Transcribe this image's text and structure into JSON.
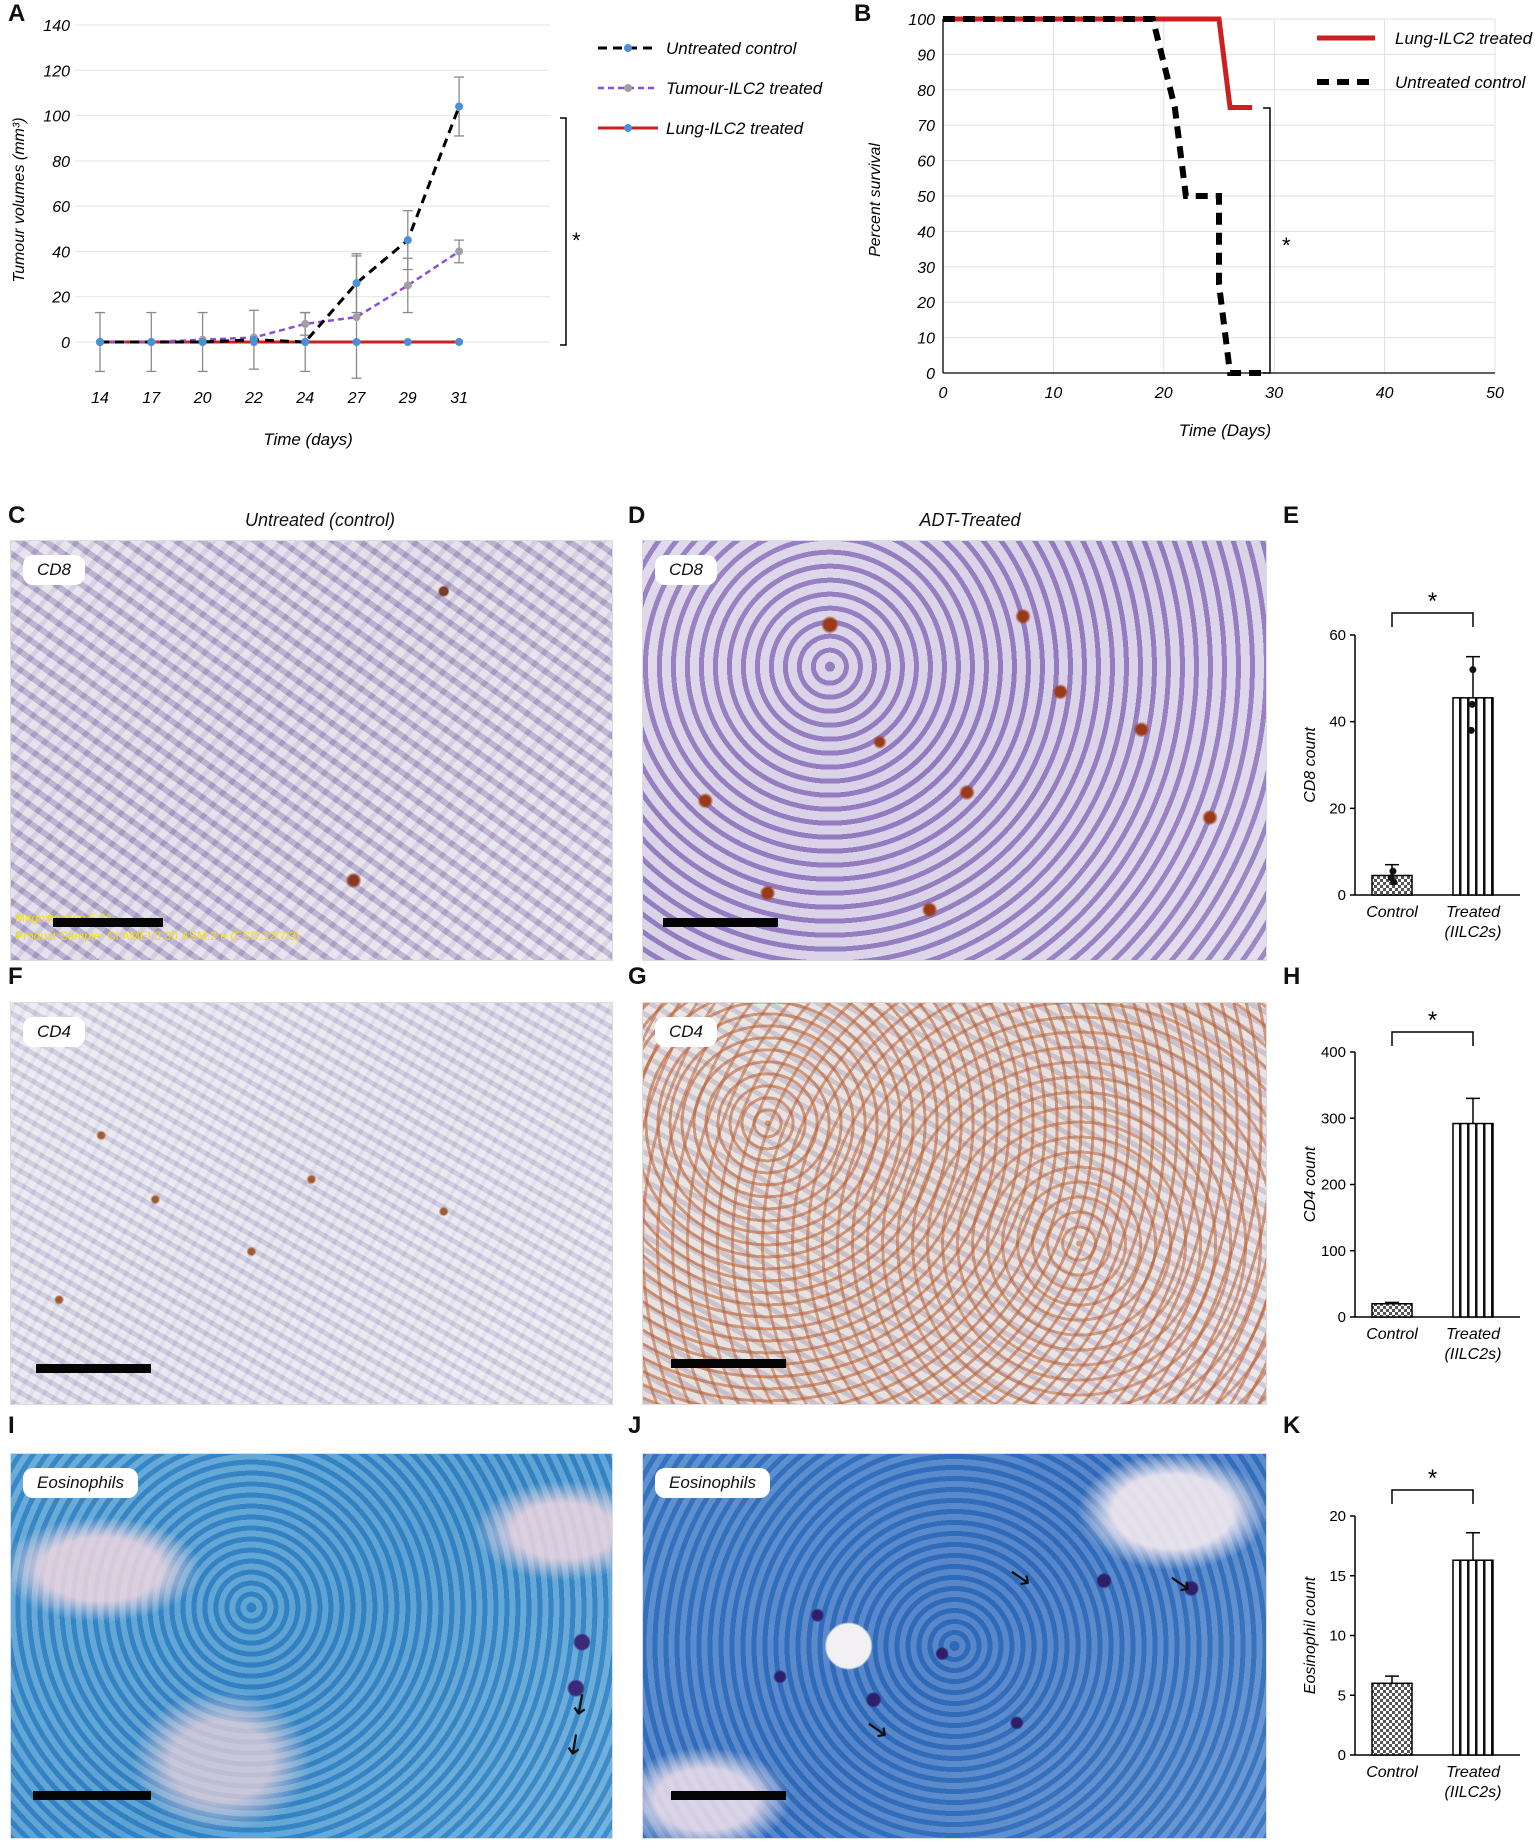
{
  "panel_letters": {
    "a": "A",
    "b": "B",
    "c": "C",
    "d": "D",
    "e": "E",
    "f": "F",
    "g": "G",
    "h": "H",
    "i": "I",
    "j": "J",
    "k": "K"
  },
  "panel_titles": {
    "c": "Untreated (control)",
    "d": "ADT-Treated"
  },
  "micrographs": {
    "c": {
      "tag": "CD8",
      "overlay_line1": "Magnification 5.3x",
      "overlay_line2": "Product Sample: Cl.AMEL3.30.ASM.2.e (ESD.12/7/3)"
    },
    "d": {
      "tag": "CD8"
    },
    "f": {
      "tag": "CD4"
    },
    "g": {
      "tag": "CD4"
    },
    "i": {
      "tag": "Eosinophils"
    },
    "j": {
      "tag": "Eosinophils"
    }
  },
  "colors": {
    "untreated": "#000000",
    "tumour_ilc2": "#8a4fd6",
    "lung_ilc2": "#cc1f1f",
    "marker_blue": "#4a90d9",
    "marker_grey": "#a0a0a0",
    "bar_fill_hatch": "#555555"
  },
  "chart_data": [
    {
      "id": "A",
      "type": "line",
      "ylabel": "Tumour volumes (mm³)",
      "xlabel": "Time (days)",
      "categories": [
        "14",
        "17",
        "20",
        "22",
        "24",
        "27",
        "29",
        "31"
      ],
      "ylim": [
        0,
        140
      ],
      "yticks": [
        0,
        20,
        40,
        60,
        80,
        100,
        120,
        140
      ],
      "grid": true,
      "legend_position": "right",
      "series": [
        {
          "name": "Untreated control",
          "values": [
            0,
            0,
            0,
            1,
            0,
            26,
            45,
            104
          ],
          "errors": [
            13,
            13,
            13,
            13,
            13,
            13,
            13,
            13
          ]
        },
        {
          "name": "Tumour-ILC2 treated",
          "values": [
            0,
            0,
            1,
            2,
            8,
            11,
            25,
            40
          ],
          "errors": [
            0,
            0,
            0,
            0,
            5,
            27,
            12,
            5
          ]
        },
        {
          "name": "Lung-ILC2 treated",
          "values": [
            0,
            0,
            0,
            0,
            0,
            0,
            0,
            0
          ]
        }
      ],
      "annotations": [
        "*"
      ]
    },
    {
      "id": "B",
      "type": "line",
      "ylabel": "Percent survival",
      "xlabel": "Time (Days)",
      "xlim": [
        0,
        50
      ],
      "xticks": [
        0,
        10,
        20,
        30,
        40,
        50
      ],
      "ylim": [
        0,
        100
      ],
      "yticks": [
        0,
        10,
        20,
        30,
        40,
        50,
        60,
        70,
        80,
        90,
        100
      ],
      "grid": true,
      "legend_position": "top-right",
      "series": [
        {
          "name": "Lung-ILC2 treated",
          "x": [
            0,
            25,
            25,
            26,
            26,
            28
          ],
          "values": [
            100,
            100,
            100,
            75,
            75,
            75
          ]
        },
        {
          "name": "Untreated control",
          "x": [
            0,
            19,
            19,
            21,
            21,
            22,
            22,
            25,
            25,
            26,
            26,
            29
          ],
          "values": [
            100,
            100,
            100,
            75,
            75,
            50,
            50,
            50,
            25,
            0,
            0,
            0
          ]
        }
      ],
      "annotations": [
        "*"
      ]
    },
    {
      "id": "E",
      "type": "bar",
      "ylabel": "CD8 count",
      "categories": [
        "Control",
        "Treated (IILC2s)"
      ],
      "values": [
        4.5,
        45.5
      ],
      "errors": [
        2.5,
        9.5
      ],
      "points": [
        [
          3,
          5.5,
          4
        ],
        [
          52,
          44,
          38
        ]
      ],
      "ylim": [
        0,
        60
      ],
      "yticks": [
        0,
        20,
        40,
        60
      ],
      "annotations": [
        "*"
      ]
    },
    {
      "id": "H",
      "type": "bar",
      "ylabel": "CD4 count",
      "categories": [
        "Control",
        "Treated (IILC2s)"
      ],
      "values": [
        20,
        292
      ],
      "errors": [
        2,
        38
      ],
      "ylim": [
        0,
        400
      ],
      "yticks": [
        0,
        100,
        200,
        300,
        400
      ],
      "annotations": [
        "*"
      ]
    },
    {
      "id": "K",
      "type": "bar",
      "ylabel": "Eosinophil count",
      "categories": [
        "Control",
        "Treated (IILC2s)"
      ],
      "values": [
        6,
        16.3
      ],
      "errors": [
        0.6,
        2.3
      ],
      "ylim": [
        0,
        20
      ],
      "yticks": [
        0,
        5,
        10,
        15,
        20
      ],
      "annotations": [
        "*"
      ]
    }
  ]
}
